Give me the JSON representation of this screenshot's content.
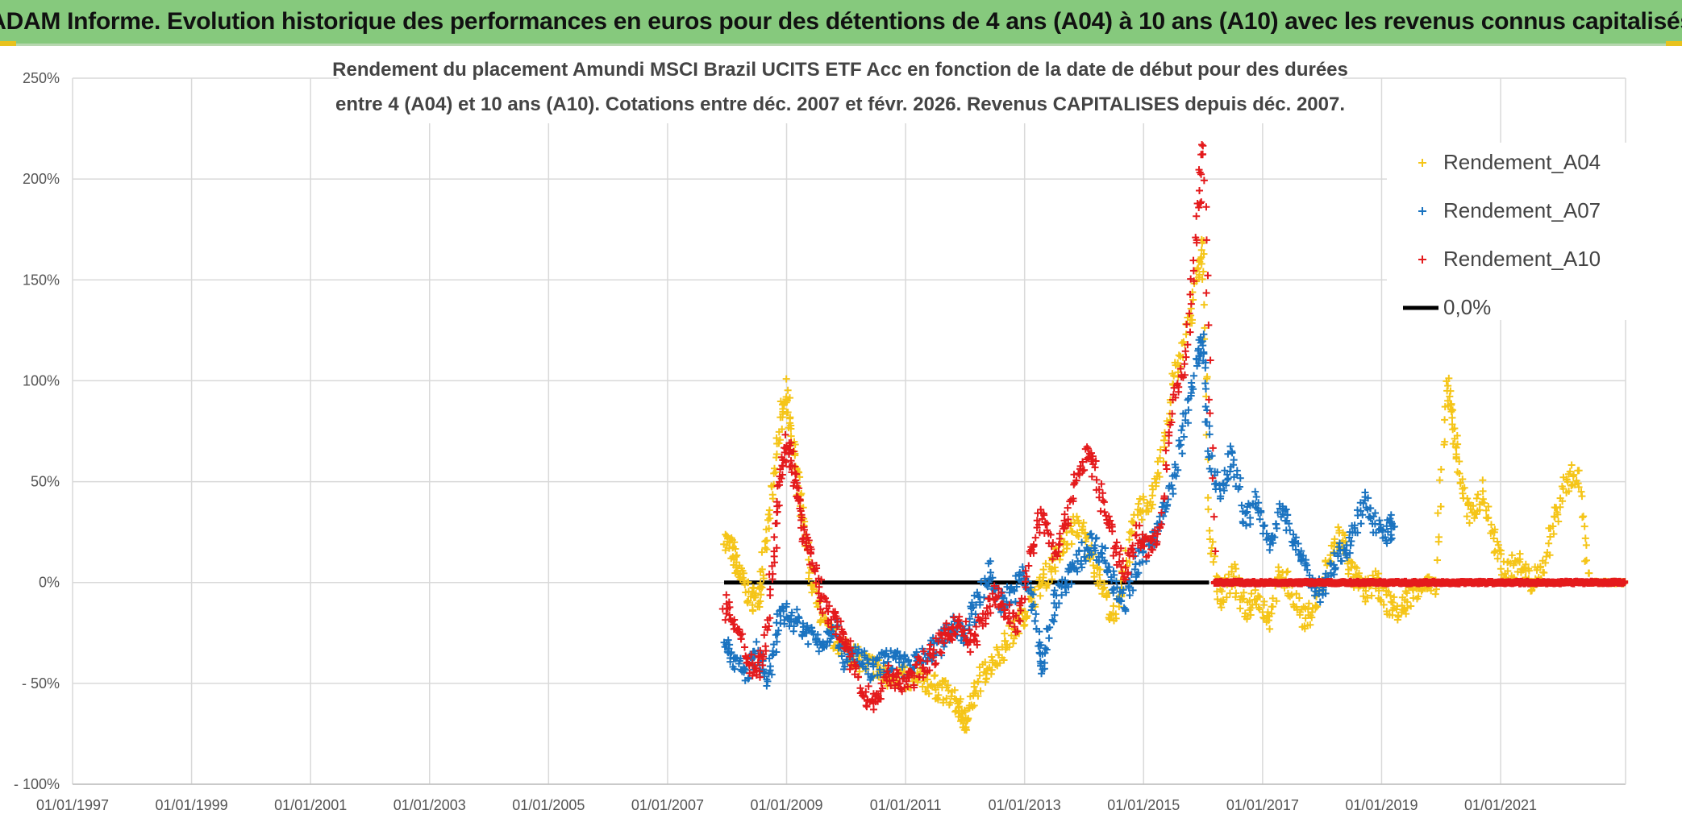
{
  "banner": {
    "title": "ADAM Informe. Evolution historique des performances en euros pour des détentions de 4 ans (A04) à 10 ans (A10) avec les revenus connus capitalisés"
  },
  "chart_data": {
    "type": "scatter",
    "title_lines": [
      "Rendement du placement Amundi MSCI Brazil UCITS ETF Acc en fonction de la date de début pour des durées",
      "entre 4 (A04) et 10 ans (A10). Cotations entre déc. 2007 et févr. 2026. Revenus CAPITALISES depuis déc. 2007."
    ],
    "y_ticks": [
      "250%",
      "200%",
      "150%",
      "100%",
      "50%",
      "0%",
      "- 50%",
      "- 100%"
    ],
    "y_tick_values": [
      250,
      200,
      150,
      100,
      50,
      0,
      -50,
      -100
    ],
    "ylim": [
      -100,
      250
    ],
    "x_ticks": [
      "01/01/1997",
      "01/01/1999",
      "01/01/2001",
      "01/01/2003",
      "01/01/2005",
      "01/01/2007",
      "01/01/2009",
      "01/01/2011",
      "01/01/2013",
      "01/01/2015",
      "01/01/2017",
      "01/01/2019",
      "01/01/2021"
    ],
    "x_tick_years": [
      1997,
      1999,
      2001,
      2003,
      2005,
      2007,
      2009,
      2011,
      2013,
      2015,
      2017,
      2019,
      2021
    ],
    "xlim": [
      1997,
      2023.1
    ],
    "reference_line": {
      "name": "0,0%",
      "value": 0,
      "color": "#000000",
      "x_start": 2007.95,
      "x_end": 2016.1
    },
    "series": [
      {
        "name": "Rendement_A04",
        "color": "#f5c518",
        "points": [
          [
            2007.95,
            22
          ],
          [
            2008.1,
            15
          ],
          [
            2008.2,
            5
          ],
          [
            2008.35,
            -5
          ],
          [
            2008.5,
            -10
          ],
          [
            2008.6,
            8
          ],
          [
            2008.75,
            40
          ],
          [
            2008.9,
            80
          ],
          [
            2009.0,
            95
          ],
          [
            2009.1,
            70
          ],
          [
            2009.2,
            45
          ],
          [
            2009.35,
            15
          ],
          [
            2009.5,
            -10
          ],
          [
            2009.7,
            -25
          ],
          [
            2009.9,
            -30
          ],
          [
            2010.1,
            -35
          ],
          [
            2010.3,
            -40
          ],
          [
            2010.5,
            -42
          ],
          [
            2010.7,
            -48
          ],
          [
            2010.9,
            -45
          ],
          [
            2011.1,
            -50
          ],
          [
            2011.3,
            -48
          ],
          [
            2011.5,
            -52
          ],
          [
            2011.7,
            -55
          ],
          [
            2011.9,
            -62
          ],
          [
            2012.0,
            -70
          ],
          [
            2012.1,
            -60
          ],
          [
            2012.3,
            -45
          ],
          [
            2012.5,
            -38
          ],
          [
            2012.7,
            -30
          ],
          [
            2012.9,
            -20
          ],
          [
            2013.1,
            -10
          ],
          [
            2013.3,
            0
          ],
          [
            2013.5,
            10
          ],
          [
            2013.7,
            20
          ],
          [
            2013.9,
            30
          ],
          [
            2014.1,
            15
          ],
          [
            2014.3,
            0
          ],
          [
            2014.5,
            -20
          ],
          [
            2014.7,
            10
          ],
          [
            2014.9,
            35
          ],
          [
            2015.1,
            40
          ],
          [
            2015.3,
            60
          ],
          [
            2015.5,
            100
          ],
          [
            2015.7,
            120
          ],
          [
            2015.9,
            150
          ],
          [
            2016.0,
            170
          ],
          [
            2016.1,
            25
          ],
          [
            2016.3,
            -10
          ],
          [
            2016.5,
            5
          ],
          [
            2016.7,
            -15
          ],
          [
            2016.9,
            -5
          ],
          [
            2017.1,
            -18
          ],
          [
            2017.3,
            5
          ],
          [
            2017.5,
            -5
          ],
          [
            2017.7,
            -20
          ],
          [
            2017.9,
            -10
          ],
          [
            2018.1,
            10
          ],
          [
            2018.3,
            25
          ],
          [
            2018.5,
            5
          ],
          [
            2018.7,
            -5
          ],
          [
            2018.9,
            0
          ],
          [
            2019.1,
            -10
          ],
          [
            2019.3,
            -15
          ],
          [
            2019.5,
            -5
          ],
          [
            2019.7,
            0
          ],
          [
            2019.9,
            -5
          ],
          [
            2020.1,
            100
          ],
          [
            2020.2,
            80
          ],
          [
            2020.3,
            55
          ],
          [
            2020.5,
            30
          ],
          [
            2020.7,
            45
          ],
          [
            2020.9,
            20
          ],
          [
            2021.1,
            5
          ],
          [
            2021.3,
            10
          ],
          [
            2021.5,
            0
          ],
          [
            2021.7,
            5
          ],
          [
            2021.9,
            30
          ],
          [
            2022.1,
            50
          ],
          [
            2022.3,
            55
          ],
          [
            2022.5,
            0
          ],
          [
            2022.8,
            0
          ],
          [
            2023.1,
            0
          ]
        ]
      },
      {
        "name": "Rendement_A07",
        "color": "#1a73c0",
        "points": [
          [
            2007.95,
            -25
          ],
          [
            2008.1,
            -40
          ],
          [
            2008.3,
            -45
          ],
          [
            2008.5,
            -35
          ],
          [
            2008.7,
            -50
          ],
          [
            2008.85,
            -20
          ],
          [
            2009.0,
            -15
          ],
          [
            2009.2,
            -20
          ],
          [
            2009.4,
            -25
          ],
          [
            2009.6,
            -30
          ],
          [
            2009.8,
            -20
          ],
          [
            2010.0,
            -40
          ],
          [
            2010.2,
            -35
          ],
          [
            2010.4,
            -45
          ],
          [
            2010.6,
            -40
          ],
          [
            2010.8,
            -38
          ],
          [
            2011.0,
            -42
          ],
          [
            2011.2,
            -40
          ],
          [
            2011.4,
            -35
          ],
          [
            2011.6,
            -30
          ],
          [
            2011.8,
            -20
          ],
          [
            2012.0,
            -25
          ],
          [
            2012.2,
            -10
          ],
          [
            2012.4,
            5
          ],
          [
            2012.6,
            -10
          ],
          [
            2012.8,
            -5
          ],
          [
            2013.0,
            5
          ],
          [
            2013.2,
            -20
          ],
          [
            2013.3,
            -45
          ],
          [
            2013.5,
            -10
          ],
          [
            2013.7,
            0
          ],
          [
            2013.9,
            10
          ],
          [
            2014.1,
            20
          ],
          [
            2014.3,
            15
          ],
          [
            2014.5,
            0
          ],
          [
            2014.7,
            -10
          ],
          [
            2014.9,
            10
          ],
          [
            2015.1,
            20
          ],
          [
            2015.3,
            30
          ],
          [
            2015.5,
            50
          ],
          [
            2015.7,
            80
          ],
          [
            2015.9,
            110
          ],
          [
            2016.0,
            120
          ],
          [
            2016.1,
            60
          ],
          [
            2016.3,
            45
          ],
          [
            2016.5,
            65
          ],
          [
            2016.7,
            30
          ],
          [
            2016.9,
            40
          ],
          [
            2017.1,
            20
          ],
          [
            2017.3,
            35
          ],
          [
            2017.5,
            25
          ],
          [
            2017.7,
            10
          ],
          [
            2017.9,
            -5
          ],
          [
            2018.1,
            0
          ],
          [
            2018.3,
            15
          ],
          [
            2018.5,
            20
          ],
          [
            2018.7,
            40
          ],
          [
            2018.9,
            30
          ],
          [
            2019.1,
            25
          ],
          [
            2019.2,
            30
          ]
        ]
      },
      {
        "name": "Rendement_A10",
        "color": "#e41a1c",
        "points": [
          [
            2007.95,
            -10
          ],
          [
            2008.1,
            -20
          ],
          [
            2008.3,
            -35
          ],
          [
            2008.5,
            -45
          ],
          [
            2008.65,
            -30
          ],
          [
            2008.8,
            20
          ],
          [
            2008.9,
            55
          ],
          [
            2009.0,
            70
          ],
          [
            2009.1,
            60
          ],
          [
            2009.2,
            40
          ],
          [
            2009.3,
            20
          ],
          [
            2009.45,
            10
          ],
          [
            2009.6,
            -10
          ],
          [
            2009.8,
            -20
          ],
          [
            2009.95,
            -25
          ],
          [
            2010.1,
            -40
          ],
          [
            2010.3,
            -55
          ],
          [
            2010.5,
            -60
          ],
          [
            2010.7,
            -45
          ],
          [
            2010.9,
            -50
          ],
          [
            2011.1,
            -48
          ],
          [
            2011.3,
            -40
          ],
          [
            2011.5,
            -35
          ],
          [
            2011.7,
            -25
          ],
          [
            2011.9,
            -20
          ],
          [
            2012.1,
            -30
          ],
          [
            2012.3,
            -20
          ],
          [
            2012.5,
            -5
          ],
          [
            2012.7,
            -15
          ],
          [
            2012.9,
            -20
          ],
          [
            2013.1,
            15
          ],
          [
            2013.3,
            35
          ],
          [
            2013.5,
            15
          ],
          [
            2013.7,
            30
          ],
          [
            2013.9,
            55
          ],
          [
            2014.1,
            65
          ],
          [
            2014.3,
            40
          ],
          [
            2014.5,
            20
          ],
          [
            2014.7,
            5
          ],
          [
            2014.9,
            25
          ],
          [
            2015.1,
            15
          ],
          [
            2015.3,
            30
          ],
          [
            2015.5,
            90
          ],
          [
            2015.7,
            110
          ],
          [
            2015.9,
            175
          ],
          [
            2016.0,
            220
          ],
          [
            2016.2,
            0
          ],
          [
            2016.5,
            0
          ],
          [
            2017.0,
            0
          ],
          [
            2017.5,
            0
          ],
          [
            2018.0,
            0
          ],
          [
            2018.5,
            0
          ],
          [
            2019.0,
            0
          ],
          [
            2019.5,
            0
          ],
          [
            2020.0,
            0
          ],
          [
            2020.5,
            0
          ],
          [
            2021.0,
            0
          ],
          [
            2021.5,
            0
          ],
          [
            2022.0,
            0
          ],
          [
            2022.5,
            0
          ],
          [
            2023.1,
            0
          ]
        ]
      }
    ]
  }
}
